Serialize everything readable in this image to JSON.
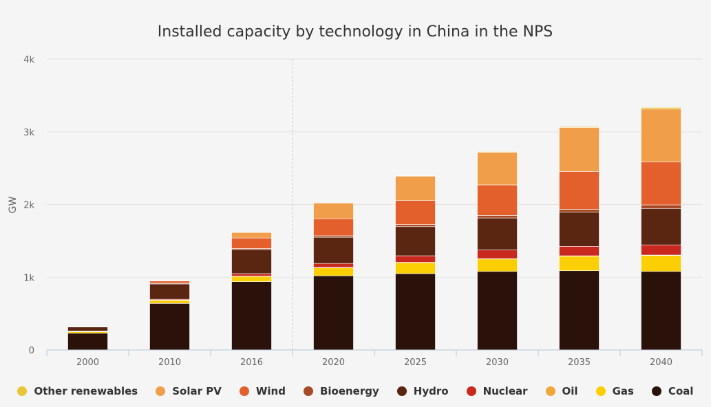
{
  "chart_data": {
    "type": "bar",
    "stacked": true,
    "title": "Installed capacity by technology in China in the NPS",
    "xlabel": "",
    "ylabel": "GW",
    "ylim": [
      0,
      4000
    ],
    "yticks": [
      {
        "value": 0,
        "label": "0"
      },
      {
        "value": 1000,
        "label": "1k"
      },
      {
        "value": 2000,
        "label": "2k"
      },
      {
        "value": 3000,
        "label": "3k"
      },
      {
        "value": 4000,
        "label": "4k"
      }
    ],
    "grid": true,
    "legend_position": "bottom",
    "divider_after_category": "2016",
    "categories": [
      "2000",
      "2010",
      "2016",
      "2020",
      "2025",
      "2030",
      "2035",
      "2040"
    ],
    "series": [
      {
        "name": "Coal",
        "color": "#2a120a",
        "values": [
          230,
          640,
          940,
          1020,
          1050,
          1080,
          1090,
          1080
        ]
      },
      {
        "name": "Gas",
        "color": "#fccf05",
        "values": [
          20,
          40,
          70,
          110,
          150,
          170,
          200,
          220
        ]
      },
      {
        "name": "Oil",
        "color": "#f0a73a",
        "values": [
          5,
          8,
          5,
          5,
          5,
          5,
          5,
          5
        ]
      },
      {
        "name": "Nuclear",
        "color": "#c8281e",
        "values": [
          5,
          10,
          35,
          55,
          90,
          120,
          130,
          140
        ]
      },
      {
        "name": "Hydro",
        "color": "#5a2612",
        "values": [
          55,
          210,
          330,
          360,
          400,
          440,
          470,
          500
        ]
      },
      {
        "name": "Bioenergy",
        "color": "#a84a26",
        "values": [
          3,
          10,
          15,
          20,
          30,
          35,
          40,
          50
        ]
      },
      {
        "name": "Wind",
        "color": "#e35f2c",
        "values": [
          5,
          30,
          145,
          235,
          330,
          420,
          520,
          590
        ]
      },
      {
        "name": "Solar PV",
        "color": "#f19e4a",
        "values": [
          0,
          3,
          75,
          215,
          335,
          450,
          605,
          730
        ]
      },
      {
        "name": "Other renewables",
        "color": "#e8c63a",
        "values": [
          0,
          0,
          0,
          0,
          5,
          8,
          12,
          20
        ]
      }
    ]
  },
  "legend": [
    {
      "label": "Other renewables",
      "color": "#e8c63a"
    },
    {
      "label": "Solar PV",
      "color": "#f19e4a"
    },
    {
      "label": "Wind",
      "color": "#e35f2c"
    },
    {
      "label": "Bioenergy",
      "color": "#a84a26"
    },
    {
      "label": "Hydro",
      "color": "#5a2612"
    },
    {
      "label": "Nuclear",
      "color": "#c8281e"
    },
    {
      "label": "Oil",
      "color": "#f0a73a"
    },
    {
      "label": "Gas",
      "color": "#fccf05"
    },
    {
      "label": "Coal",
      "color": "#2a120a"
    }
  ]
}
